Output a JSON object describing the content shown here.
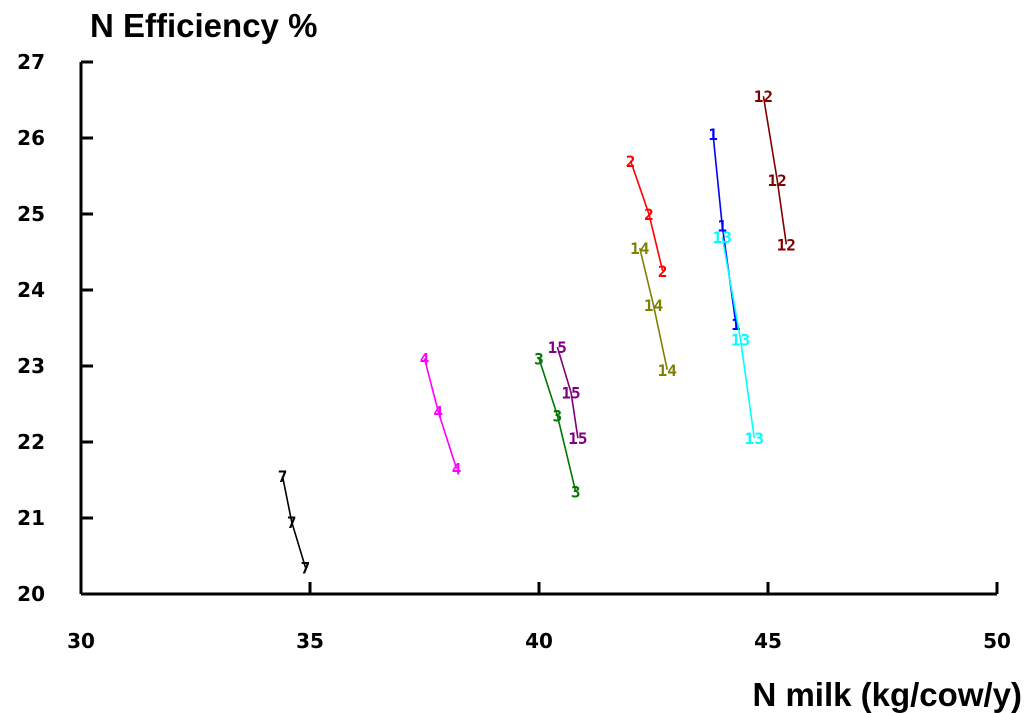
{
  "chart_data": {
    "type": "line",
    "title": "N Efficiency %",
    "xlabel": "N milk (kg/cow/y)",
    "ylabel": "",
    "xlim": [
      30,
      50
    ],
    "ylim": [
      20,
      27
    ],
    "xticks": [
      "30",
      "35",
      "40",
      "45",
      "50"
    ],
    "yticks": [
      "20",
      "21",
      "22",
      "23",
      "24",
      "25",
      "26",
      "27"
    ],
    "grid": false,
    "series": [
      {
        "label": "7",
        "color": "#000000",
        "points": [
          [
            34.4,
            21.55
          ],
          [
            34.6,
            20.95
          ],
          [
            34.9,
            20.35
          ]
        ]
      },
      {
        "label": "4",
        "color": "#ff00ff",
        "points": [
          [
            37.5,
            23.1
          ],
          [
            37.8,
            22.4
          ],
          [
            38.2,
            21.65
          ]
        ]
      },
      {
        "label": "3",
        "color": "#007700",
        "points": [
          [
            40.0,
            23.1
          ],
          [
            40.4,
            22.35
          ],
          [
            40.8,
            21.35
          ]
        ]
      },
      {
        "label": "15",
        "color": "#800080",
        "points": [
          [
            40.4,
            23.25
          ],
          [
            40.7,
            22.65
          ],
          [
            40.85,
            22.05
          ]
        ]
      },
      {
        "label": "2",
        "color": "#ff0000",
        "points": [
          [
            42.0,
            25.7
          ],
          [
            42.4,
            25.0
          ],
          [
            42.7,
            24.25
          ]
        ]
      },
      {
        "label": "14",
        "color": "#808000",
        "points": [
          [
            42.2,
            24.55
          ],
          [
            42.5,
            23.8
          ],
          [
            42.8,
            22.95
          ]
        ]
      },
      {
        "label": "1",
        "color": "#0000ff",
        "points": [
          [
            43.8,
            26.05
          ],
          [
            44.0,
            24.85
          ],
          [
            44.3,
            23.55
          ]
        ]
      },
      {
        "label": "13",
        "color": "#00ffff",
        "points": [
          [
            44.0,
            24.7
          ],
          [
            44.4,
            23.35
          ],
          [
            44.7,
            22.05
          ]
        ]
      },
      {
        "label": "12",
        "color": "#800000",
        "points": [
          [
            44.9,
            26.55
          ],
          [
            45.2,
            25.45
          ],
          [
            45.4,
            24.6
          ]
        ]
      }
    ]
  }
}
